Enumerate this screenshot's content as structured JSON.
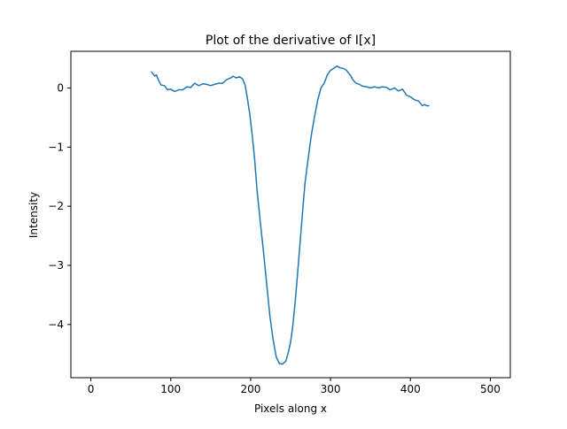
{
  "chart_data": {
    "type": "line",
    "title": "Plot of the derivative of I[x]",
    "xlabel": "Pixels along x",
    "ylabel": "Intensity",
    "xlim": [
      -25,
      525
    ],
    "ylim": [
      -4.9,
      0.62
    ],
    "xticks": [
      0,
      100,
      200,
      300,
      400,
      500
    ],
    "yticks": [
      0,
      -1,
      -2,
      -3,
      -4
    ],
    "grid": false,
    "series": [
      {
        "color": "#1f77b4",
        "x": [
          76,
          80,
          82,
          85,
          88,
          92,
          96,
          100,
          105,
          110,
          115,
          120,
          125,
          130,
          135,
          140,
          145,
          150,
          155,
          160,
          165,
          170,
          175,
          178,
          182,
          186,
          190,
          193,
          196,
          199,
          202,
          205,
          208,
          212,
          216,
          220,
          224,
          228,
          232,
          236,
          240,
          244,
          247,
          250,
          253,
          256,
          259,
          262,
          265,
          268,
          272,
          276,
          280,
          284,
          288,
          292,
          296,
          300,
          304,
          308,
          312,
          316,
          320,
          325,
          328,
          332,
          336,
          340,
          345,
          350,
          355,
          360,
          365,
          370,
          375,
          380,
          385,
          390,
          395,
          400,
          405,
          410,
          415,
          418,
          420,
          423
        ],
        "y": [
          0.27,
          0.2,
          0.22,
          0.12,
          0.05,
          0.04,
          -0.03,
          -0.02,
          -0.06,
          -0.03,
          -0.03,
          0.02,
          0.01,
          0.08,
          0.04,
          0.07,
          0.06,
          0.04,
          0.06,
          0.08,
          0.08,
          0.14,
          0.17,
          0.2,
          0.17,
          0.19,
          0.15,
          0.05,
          -0.18,
          -0.45,
          -0.8,
          -1.2,
          -1.72,
          -2.25,
          -2.75,
          -3.3,
          -3.85,
          -4.25,
          -4.55,
          -4.66,
          -4.67,
          -4.62,
          -4.48,
          -4.3,
          -4.0,
          -3.58,
          -3.1,
          -2.6,
          -2.1,
          -1.62,
          -1.2,
          -0.8,
          -0.48,
          -0.2,
          0.0,
          0.08,
          0.22,
          0.3,
          0.33,
          0.37,
          0.34,
          0.33,
          0.3,
          0.21,
          0.14,
          0.08,
          0.06,
          0.03,
          0.02,
          0.0,
          0.02,
          0.0,
          0.02,
          0.01,
          -0.03,
          0.0,
          -0.05,
          -0.02,
          -0.12,
          -0.15,
          -0.2,
          -0.22,
          -0.3,
          -0.28,
          -0.3,
          -0.3
        ]
      }
    ]
  }
}
